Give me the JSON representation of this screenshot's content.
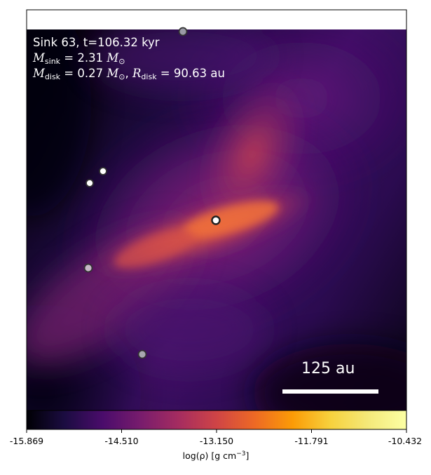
{
  "annotation": {
    "line1": "Sink 63, t=106.32 kyr",
    "m_sink_symbol": "M",
    "m_sink_sub": "sink",
    "m_sink_value": " = 2.31",
    "m_sink_unit": "M",
    "m_sink_unit_sub": "⊙",
    "m_disk_symbol": "M",
    "m_disk_sub": "disk",
    "m_disk_value": " = 0.27",
    "m_disk_unit": "M",
    "m_disk_unit_sub": "⊙",
    "r_disk_symbol": "R",
    "r_disk_sub": "disk",
    "r_disk_value": " = 90.63 au"
  },
  "scalebar": {
    "label": "125 au"
  },
  "colorbar": {
    "colormap": "inferno",
    "ticks": [
      "-15.869",
      "-14.510",
      "-13.150",
      "-11.791",
      "-10.432"
    ],
    "label_main": "log(ρ) [g cm",
    "label_exp": "−3",
    "label_end": "]"
  },
  "colors": {
    "background_dark": "#0a0318",
    "disk_orange": "#e8603a",
    "envelope_purple": "#6a1a7a"
  },
  "sinks": [
    {
      "name": "sink-central",
      "fill": "#ffffff",
      "stroke": "#222222"
    },
    {
      "name": "sink-top",
      "fill": "#9a9aa6",
      "stroke": "#333333"
    },
    {
      "name": "sink-left-upper",
      "fill": "#ffffff",
      "stroke": "#333333"
    },
    {
      "name": "sink-left-lower",
      "fill": "#ffffff",
      "stroke": "#333333"
    },
    {
      "name": "sink-left-mid",
      "fill": "#c8b8c8",
      "stroke": "#333333"
    },
    {
      "name": "sink-bottom",
      "fill": "#a8a8b0",
      "stroke": "#333333"
    }
  ]
}
